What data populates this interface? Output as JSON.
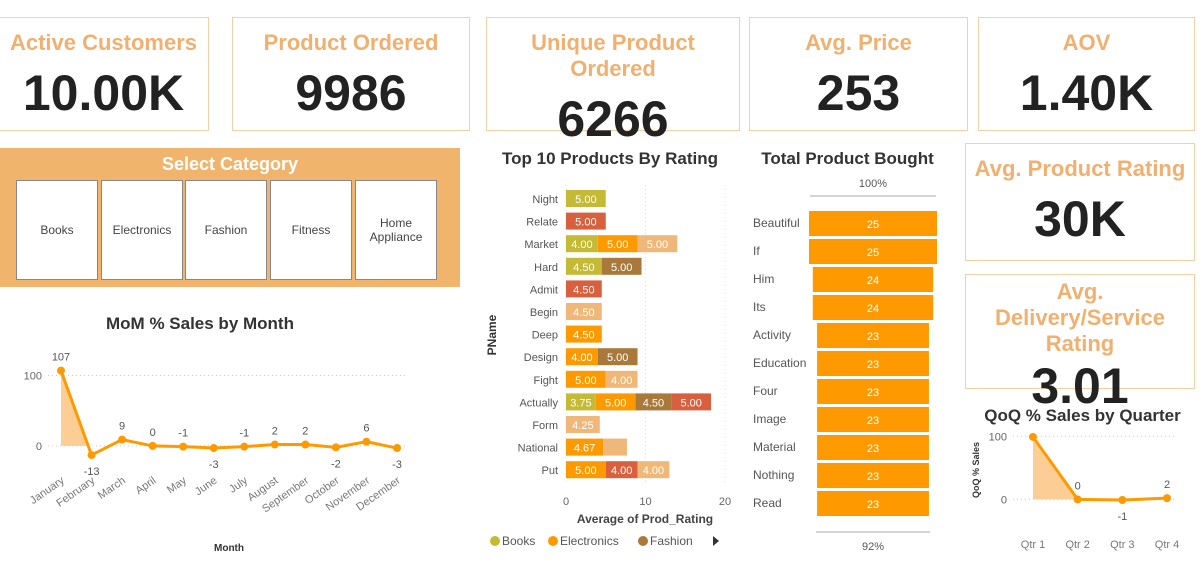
{
  "kpis": [
    {
      "title": "Active Customers",
      "value": "10.00K"
    },
    {
      "title": "Product Ordered",
      "value": "9986"
    },
    {
      "title": "Unique Product Ordered",
      "value": "6266"
    },
    {
      "title": "Avg. Price",
      "value": "253"
    },
    {
      "title": "AOV",
      "value": "1.40K"
    }
  ],
  "side_kpis": [
    {
      "title": "Avg. Product Rating",
      "value": "30K"
    },
    {
      "title": "Avg. Delivery/Service Rating",
      "value": "3.01"
    }
  ],
  "category": {
    "title": "Select Category",
    "options": [
      "Books",
      "Electronics",
      "Fashion",
      "Fitness",
      "Home Appliance"
    ]
  },
  "colors": {
    "accent": "#fe9a00",
    "books": "#c4ba35",
    "electronics": "#fe9a00",
    "fashion": "#a8793a",
    "fitness": "#f0b878",
    "home": "#d9603f",
    "card_title": "#f0b070"
  },
  "chart_data": [
    {
      "type": "line",
      "title": "MoM % Sales by Month",
      "xlabel": "Month",
      "ylabel": "",
      "ylim": [
        -20,
        115
      ],
      "yticks": [
        0,
        100
      ],
      "categories": [
        "January",
        "February",
        "March",
        "April",
        "May",
        "June",
        "July",
        "August",
        "September",
        "October",
        "November",
        "December"
      ],
      "values": [
        107,
        -13,
        9,
        0,
        -1,
        -3,
        -1,
        2,
        2,
        -2,
        6,
        -3
      ]
    },
    {
      "type": "bar",
      "stacked": true,
      "orientation": "horizontal",
      "title": "Top 10 Products By Rating",
      "xlabel": "Average of Prod_Rating",
      "ylabel": "PName",
      "xlim": [
        0,
        20
      ],
      "xticks": [
        0,
        10,
        20
      ],
      "legend": [
        "Books",
        "Electronics",
        "Fashion"
      ],
      "rows": [
        {
          "name": "Night",
          "segments": [
            {
              "cat": "books",
              "value": 5.0,
              "label": "5.00"
            }
          ]
        },
        {
          "name": "Relate",
          "segments": [
            {
              "cat": "home",
              "value": 5.0,
              "label": "5.00"
            }
          ]
        },
        {
          "name": "Market",
          "segments": [
            {
              "cat": "books",
              "value": 4.0,
              "label": "4.00"
            },
            {
              "cat": "electronics",
              "value": 5.0,
              "label": "5.00"
            },
            {
              "cat": "fitness",
              "value": 5.0,
              "label": "5.00"
            }
          ]
        },
        {
          "name": "Hard",
          "segments": [
            {
              "cat": "books",
              "value": 4.5,
              "label": "4.50"
            },
            {
              "cat": "fashion",
              "value": 5.0,
              "label": "5.00"
            }
          ]
        },
        {
          "name": "Admit",
          "segments": [
            {
              "cat": "home",
              "value": 4.5,
              "label": "4.50"
            }
          ]
        },
        {
          "name": "Begin",
          "segments": [
            {
              "cat": "fitness",
              "value": 4.5,
              "label": "4.50"
            }
          ]
        },
        {
          "name": "Deep",
          "segments": [
            {
              "cat": "electronics",
              "value": 4.5,
              "label": "4.50"
            }
          ]
        },
        {
          "name": "Design",
          "segments": [
            {
              "cat": "electronics",
              "value": 4.0,
              "label": "4.00"
            },
            {
              "cat": "fashion",
              "value": 5.0,
              "label": "5.00"
            }
          ]
        },
        {
          "name": "Fight",
          "segments": [
            {
              "cat": "electronics",
              "value": 5.0,
              "label": "5.00"
            },
            {
              "cat": "fitness",
              "value": 4.0,
              "label": "4.00"
            }
          ]
        },
        {
          "name": "Actually",
          "segments": [
            {
              "cat": "books",
              "value": 3.75,
              "label": "3.75"
            },
            {
              "cat": "electronics",
              "value": 5.0,
              "label": "5.00"
            },
            {
              "cat": "fashion",
              "value": 4.5,
              "label": "4.50"
            },
            {
              "cat": "home",
              "value": 5.0,
              "label": "5.00"
            }
          ]
        },
        {
          "name": "Form",
          "segments": [
            {
              "cat": "fitness",
              "value": 4.25,
              "label": "4.25"
            }
          ]
        },
        {
          "name": "National",
          "segments": [
            {
              "cat": "electronics",
              "value": 4.67,
              "label": "4.67"
            },
            {
              "cat": "fitness",
              "value": 3.0,
              "label": ""
            }
          ]
        },
        {
          "name": "Put",
          "segments": [
            {
              "cat": "electronics",
              "value": 5.0,
              "label": "5.00"
            },
            {
              "cat": "home",
              "value": 4.0,
              "label": "4.00"
            },
            {
              "cat": "fitness",
              "value": 4.0,
              "label": "4.00"
            }
          ]
        }
      ]
    },
    {
      "type": "bar",
      "subtype": "funnel",
      "title": "Total Product Bought",
      "top_pct": "100%",
      "bottom_pct": "92%",
      "categories": [
        "Beautiful",
        "If",
        "Him",
        "Its",
        "Activity",
        "Education",
        "Four",
        "Image",
        "Material",
        "Nothing",
        "Read"
      ],
      "values": [
        25,
        25,
        24,
        24,
        23,
        23,
        23,
        23,
        23,
        23,
        23
      ]
    },
    {
      "type": "line",
      "title": "QoQ % Sales by Quarter",
      "ylabel": "QoQ % Sales",
      "ylim": [
        -20,
        110
      ],
      "yticks": [
        0,
        100
      ],
      "categories": [
        "Qtr 1",
        "Qtr 2",
        "Qtr 3",
        "Qtr 4"
      ],
      "values": [
        99,
        0,
        -1,
        2
      ]
    }
  ]
}
